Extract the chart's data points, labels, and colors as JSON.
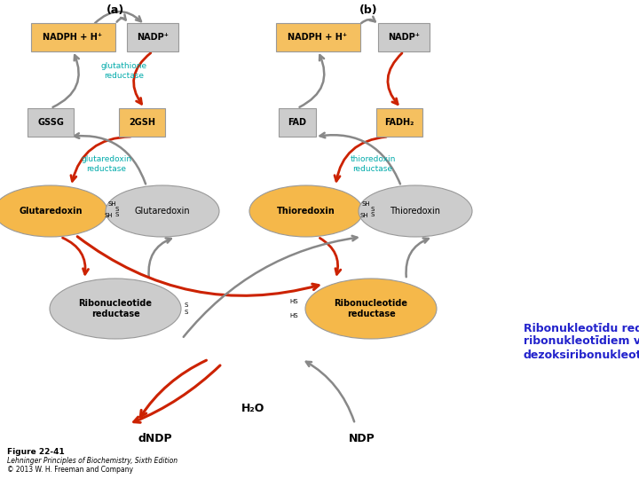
{
  "caption_title": "Figure 22-41",
  "caption_line1": "Lehninger Principles of Biochemistry, Sixth Edition",
  "caption_line2": "© 2013 W. H. Freeman and Company",
  "annotation_text": "Ribonukleotīdu reduktāze no\nribonukleotīdiem veido\ndezoksiribonukleotīdus",
  "annotation_color": "#2222cc",
  "background_color": "#ffffff",
  "label_a": "(a)",
  "label_b": "(b)",
  "red_color": "#cc2200",
  "dark_gray": "#888888",
  "cyan_color": "#00aaaa",
  "box_orange_fill": "#f5c060",
  "box_gray_fill": "#cccccc",
  "ellipse_orange": "#f5b84a",
  "ellipse_gray": "#cccccc"
}
